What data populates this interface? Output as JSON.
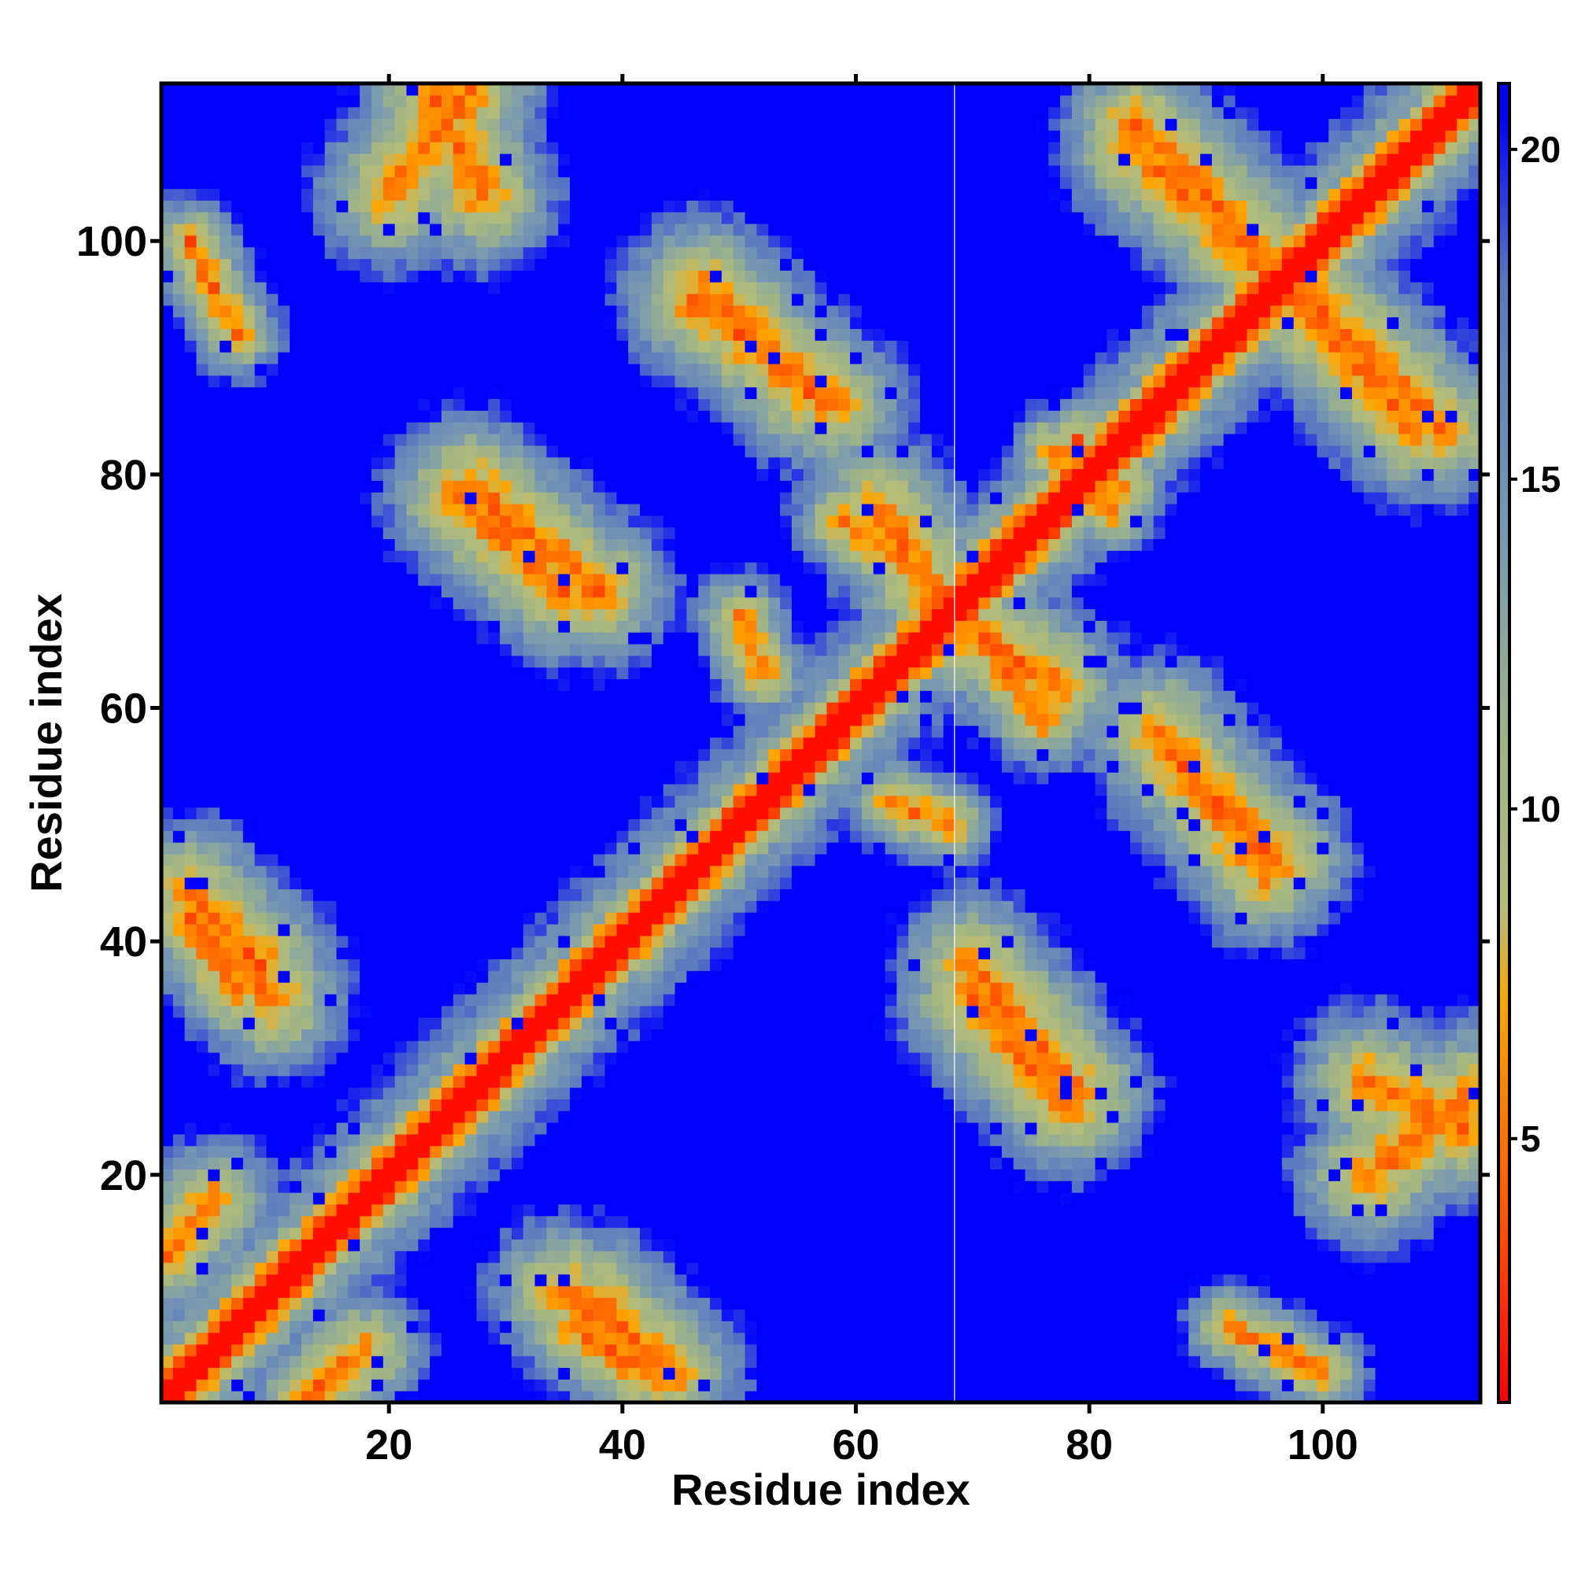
{
  "chart_data": {
    "type": "heatmap",
    "title": "",
    "xlabel": "Residue index",
    "ylabel": "Residue index",
    "n_residues": 113,
    "xlim": [
      1,
      113
    ],
    "ylim": [
      1,
      113
    ],
    "x_ticks": [
      20,
      40,
      60,
      80,
      100
    ],
    "y_ticks": [
      20,
      40,
      60,
      80,
      100
    ],
    "colorbar": {
      "range": [
        1,
        21
      ],
      "ticks": [
        5,
        10,
        15,
        20
      ],
      "stops": [
        {
          "value": 1,
          "color": "#ff0000"
        },
        {
          "value": 4,
          "color": "#ff5a00"
        },
        {
          "value": 7,
          "color": "#ffa500"
        },
        {
          "value": 8.5,
          "color": "#b4bc78"
        },
        {
          "value": 11,
          "color": "#a0b488"
        },
        {
          "value": 14,
          "color": "#7a9ab0"
        },
        {
          "value": 18,
          "color": "#5a78c0"
        },
        {
          "value": 20.5,
          "color": "#0000ff"
        }
      ],
      "cap_value": 21,
      "cap_color": "#0000ff"
    },
    "secondary_structure_segments": [
      {
        "start": 1,
        "end": 5
      },
      {
        "start": 7,
        "end": 11
      },
      {
        "start": 13,
        "end": 19
      },
      {
        "start": 22,
        "end": 27
      },
      {
        "start": 29,
        "end": 36
      },
      {
        "start": 37,
        "end": 43
      },
      {
        "start": 46,
        "end": 56
      },
      {
        "start": 62,
        "end": 67
      },
      {
        "start": 70,
        "end": 78
      },
      {
        "start": 81,
        "end": 88
      },
      {
        "start": 89,
        "end": 96
      },
      {
        "start": 99,
        "end": 104
      },
      {
        "start": 105,
        "end": 113
      }
    ],
    "strand_contacts": [
      {
        "a": [
          4,
          10
        ],
        "b": [
          42,
          35
        ],
        "strength": 1
      },
      {
        "a": [
          13,
          18
        ],
        "b": [
          1,
          5
        ],
        "strength": 0.8
      },
      {
        "a": [
          24,
          28
        ],
        "b": [
          112,
          104
        ],
        "strength": 1
      },
      {
        "a": [
          38,
          44
        ],
        "b": [
          9,
          3
        ],
        "strength": 1
      },
      {
        "a": [
          47,
          56
        ],
        "b": [
          96,
          87
        ],
        "strength": 1
      },
      {
        "a": [
          26,
          35
        ],
        "b": [
          78,
          70
        ],
        "strength": 1
      },
      {
        "a": [
          70,
          79
        ],
        "b": [
          38,
          27
        ],
        "strength": 1
      },
      {
        "a": [
          69,
          77
        ],
        "b": [
          67,
          62
        ],
        "strength": 1
      },
      {
        "a": [
          86,
          95
        ],
        "b": [
          58,
          46
        ],
        "strength": 1
      },
      {
        "a": [
          84,
          97
        ],
        "b": [
          108,
          96
        ],
        "strength": 1
      },
      {
        "a": [
          98,
          110
        ],
        "b": [
          96,
          84
        ],
        "strength": 1
      },
      {
        "a": [
          104,
          113
        ],
        "b": [
          20,
          27
        ],
        "strength": 1
      },
      {
        "a": [
          36,
          42
        ],
        "b": [
          7,
          3
        ],
        "strength": 0.8
      },
      {
        "a": [
          59,
          66
        ],
        "b": [
          76,
          71
        ],
        "strength": 0.7
      },
      {
        "a": [
          63,
          68
        ],
        "b": [
          52,
          50
        ],
        "strength": 0.6
      },
      {
        "a": [
          79,
          82
        ],
        "b": [
          83,
          77
        ],
        "strength": 0.6
      },
      {
        "a": [
          92,
          100
        ],
        "b": [
          7,
          3
        ],
        "strength": 0.6
      }
    ]
  }
}
